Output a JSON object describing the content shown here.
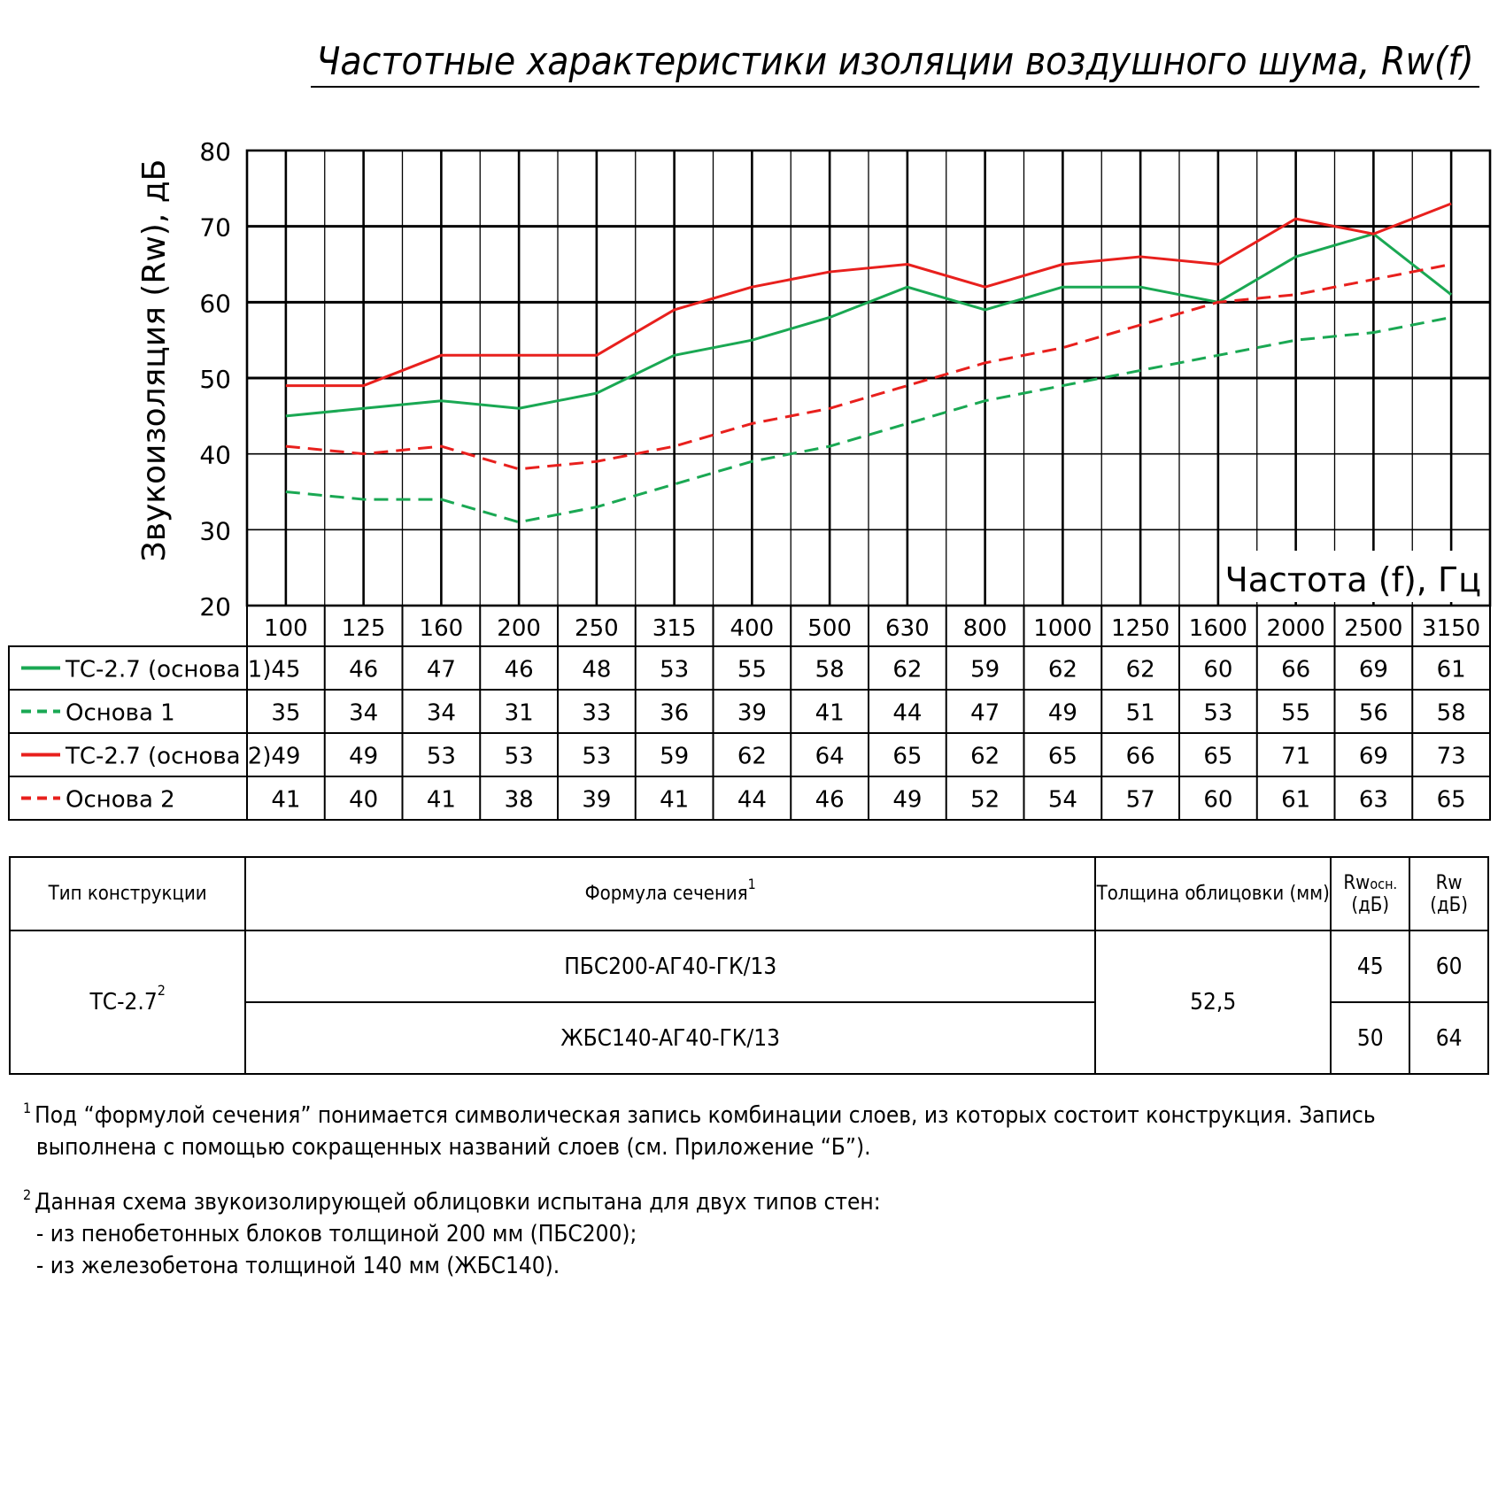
{
  "title": "Частотные характеристики изоляции воздушного шума, Rw(f)",
  "chart_data": {
    "type": "line",
    "title": "Частотные характеристики изоляции воздушного шума, Rw(f)",
    "xlabel": "Частота (f), Гц",
    "ylabel": "Звукоизоляция (Rw), дБ",
    "ylim": [
      20,
      80
    ],
    "yticks": [
      "20",
      "30",
      "40",
      "50",
      "60",
      "70",
      "80"
    ],
    "categories": [
      "100",
      "125",
      "160",
      "200",
      "250",
      "315",
      "400",
      "500",
      "630",
      "800",
      "1000",
      "1250",
      "1600",
      "2000",
      "2500",
      "3150"
    ],
    "series": [
      {
        "name": "ТС-2.7 (основа 1)",
        "color": "#1aa853",
        "dash": "solid",
        "values": [
          45,
          46,
          47,
          46,
          48,
          53,
          55,
          58,
          62,
          59,
          62,
          62,
          60,
          66,
          69,
          61
        ]
      },
      {
        "name": "Основа 1",
        "color": "#1aa853",
        "dash": "dashed",
        "values": [
          35,
          34,
          34,
          31,
          33,
          36,
          39,
          41,
          44,
          47,
          49,
          51,
          53,
          55,
          56,
          58
        ]
      },
      {
        "name": "ТС-2.7 (основа 2)",
        "color": "#e8201d",
        "dash": "solid",
        "values": [
          49,
          49,
          53,
          53,
          53,
          59,
          62,
          64,
          65,
          62,
          65,
          66,
          65,
          71,
          69,
          73
        ]
      },
      {
        "name": "Основа 2",
        "color": "#e8201d",
        "dash": "dashed",
        "values": [
          41,
          40,
          41,
          38,
          39,
          41,
          44,
          46,
          49,
          52,
          54,
          57,
          60,
          61,
          63,
          65
        ]
      }
    ]
  },
  "table": {
    "col_type": "Тип конструкции",
    "col_formula": "Формула сечения",
    "col_formula_note": "1",
    "col_thickness": "Толщина облицовки (мм)",
    "col_rw_base": "Rw",
    "col_rw_base_sub": "осн.",
    "col_rw_base_unit": "(дБ)",
    "col_rw": "Rw",
    "col_rw_unit": "(дБ)",
    "type_value": "ТС-2.7",
    "type_note": "2",
    "formula_1": "ПБС200-АГ40-ГК/13",
    "formula_2": "ЖБС140-АГ40-ГК/13",
    "thickness": "52,5",
    "rw_base_1": "45",
    "rw_1": "60",
    "rw_base_2": "50",
    "rw_2": "64"
  },
  "notes": {
    "n1_mark": "1",
    "n1_line1": "Под “формулой сечения” понимается символическая запись комбинации слоев, из которых состоит конструкция. Запись",
    "n1_line2": "выполнена с помощью сокращенных названий слоев (см. Приложение “Б”).",
    "n2_mark": "2",
    "n2_line1": "Данная схема звукоизолирующей облицовки испытана для двух типов стен:",
    "n2_line2": "- из пенобетонных блоков толщиной 200 мм (ПБС200);",
    "n2_line3": "- из железобетона толщиной 140 мм (ЖБС140)."
  }
}
